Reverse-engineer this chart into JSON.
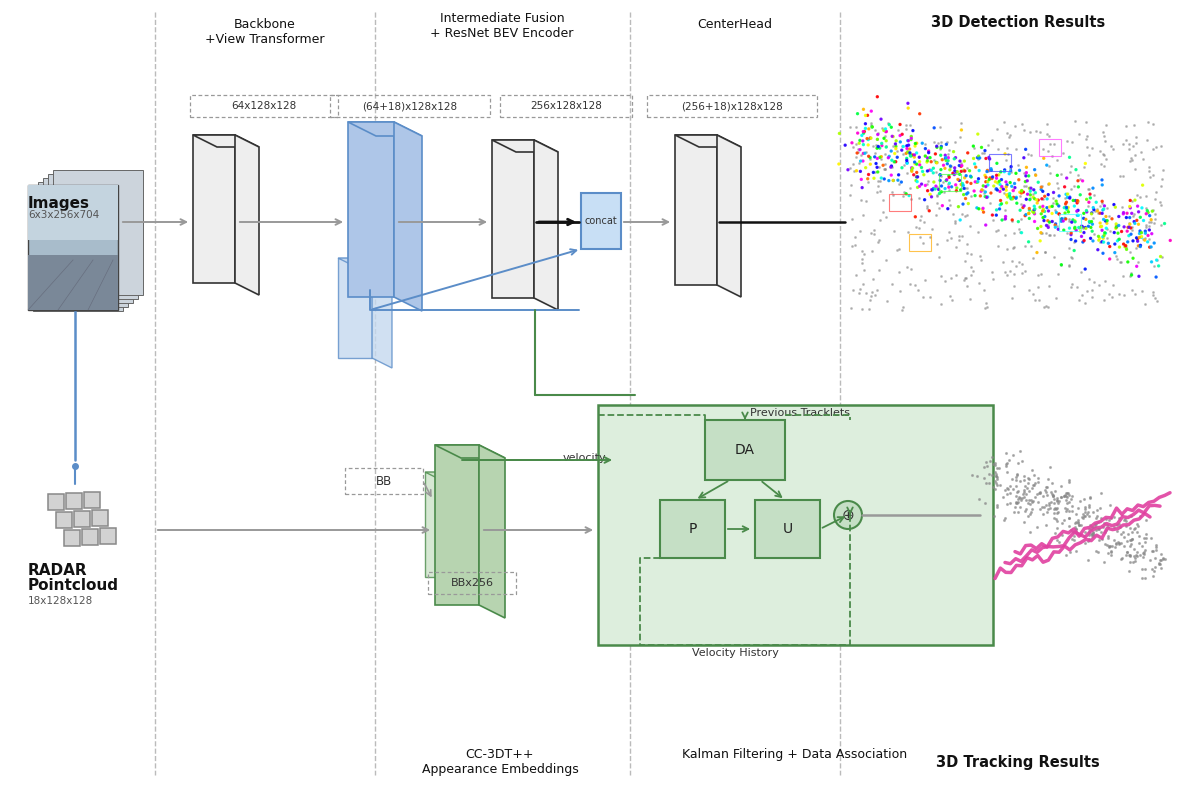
{
  "bg_color": "#ffffff",
  "section_labels": {
    "backbone": "Backbone\n+View Transformer",
    "intermediate": "Intermediate Fusion\n+ ResNet BEV Encoder",
    "centerhead": "CenterHead",
    "detection": "3D Detection Results",
    "tracking": "3D Tracking Results",
    "cc3dt": "CC-3DT++\nAppearance Embeddings",
    "kalman": "Kalman Filtering + Data Association"
  },
  "dim_labels": {
    "backbone_out": "64x128x128",
    "fusion_in": "(64+18)x128x128",
    "fusion_out": "256x128x128",
    "centerhead_in": "(256+18)x128x128",
    "radar_in": "18x128x128",
    "images_in": "6x3x256x704",
    "bb": "BB",
    "bbx256": "BBx256"
  },
  "white_block": "#eeeeee",
  "blue_block": "#aec6e8",
  "blue_block2": "#c5d9ef",
  "green_block": "#b7d4b0",
  "green_block2": "#cce3c8",
  "concat_block": "#c8dff5",
  "block_edge": "#333333",
  "blue_edge": "#5b8dc8",
  "green_edge": "#4a8a4a",
  "arrow_gray": "#999999",
  "arrow_black": "#111111",
  "arrow_blue": "#5b8dc8",
  "arrow_green": "#4a8a4a",
  "dashed_box": "#999999",
  "section_line": "#bbbbbb",
  "text_color": "#111111",
  "kalman_bg": "#ddeedd",
  "kalman_inner": "#c5dfc5"
}
